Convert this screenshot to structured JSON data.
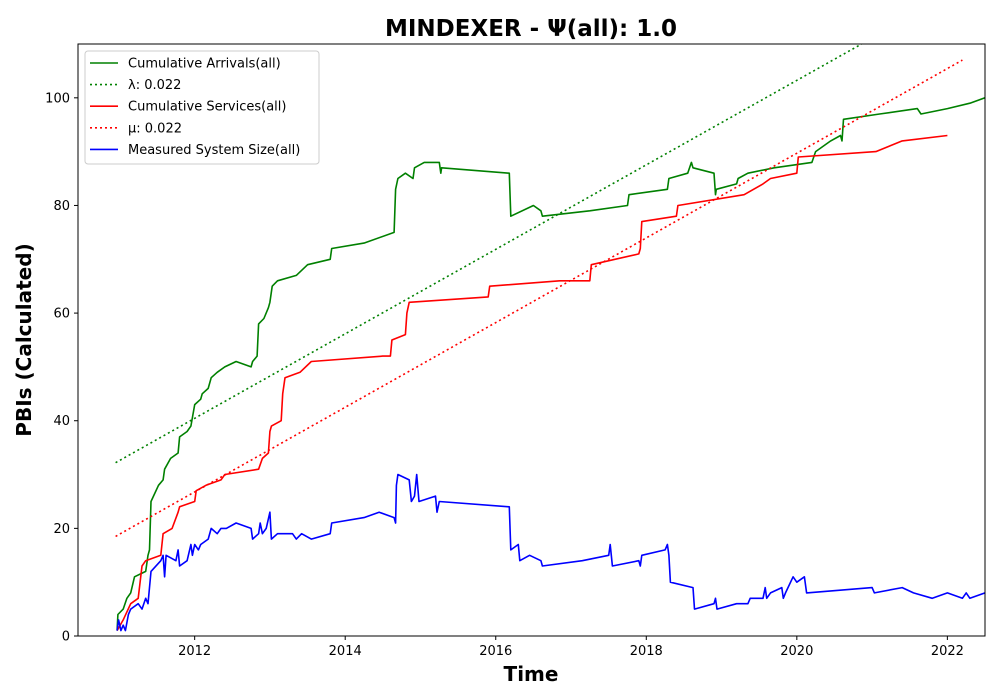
{
  "chart_data": {
    "type": "line",
    "title": "MINDEXER -  Ψ(all): 1.0",
    "xlabel": "Time",
    "ylabel": "PBIs (Calculated)",
    "xlim": [
      2010.45,
      2022.5
    ],
    "ylim": [
      0,
      110
    ],
    "xticks": [
      2012,
      2014,
      2016,
      2018,
      2020,
      2022
    ],
    "yticks": [
      0,
      20,
      40,
      60,
      80,
      100
    ],
    "grid": false,
    "legend_position": "upper-left",
    "series": [
      {
        "name": "Cumulative Arrivals(all)",
        "style": "solid",
        "color": "#008000",
        "points": [
          [
            2010.97,
            1
          ],
          [
            2010.98,
            4
          ],
          [
            2011.05,
            5
          ],
          [
            2011.1,
            7
          ],
          [
            2011.15,
            8
          ],
          [
            2011.2,
            11
          ],
          [
            2011.35,
            12
          ],
          [
            2011.38,
            15
          ],
          [
            2011.4,
            16
          ],
          [
            2011.42,
            25
          ],
          [
            2011.52,
            28
          ],
          [
            2011.58,
            29
          ],
          [
            2011.6,
            31
          ],
          [
            2011.68,
            33
          ],
          [
            2011.78,
            34
          ],
          [
            2011.8,
            37
          ],
          [
            2011.9,
            38
          ],
          [
            2011.95,
            39
          ],
          [
            2012.0,
            43
          ],
          [
            2012.08,
            44
          ],
          [
            2012.1,
            45
          ],
          [
            2012.18,
            46
          ],
          [
            2012.22,
            48
          ],
          [
            2012.3,
            49
          ],
          [
            2012.4,
            50
          ],
          [
            2012.55,
            51
          ],
          [
            2012.75,
            50
          ],
          [
            2012.77,
            51
          ],
          [
            2012.83,
            52
          ],
          [
            2012.85,
            58
          ],
          [
            2012.92,
            59
          ],
          [
            2012.98,
            61
          ],
          [
            2013.0,
            62
          ],
          [
            2013.03,
            65
          ],
          [
            2013.1,
            66
          ],
          [
            2013.35,
            67
          ],
          [
            2013.5,
            69
          ],
          [
            2013.8,
            70
          ],
          [
            2013.82,
            72
          ],
          [
            2014.25,
            73
          ],
          [
            2014.65,
            75
          ],
          [
            2014.67,
            83
          ],
          [
            2014.7,
            85
          ],
          [
            2014.8,
            86
          ],
          [
            2014.9,
            85
          ],
          [
            2014.92,
            87
          ],
          [
            2015.05,
            88
          ],
          [
            2015.25,
            88
          ],
          [
            2015.27,
            86
          ],
          [
            2015.28,
            87
          ],
          [
            2016.18,
            86
          ],
          [
            2016.2,
            78
          ],
          [
            2016.5,
            80
          ],
          [
            2016.6,
            79
          ],
          [
            2016.62,
            78
          ],
          [
            2017.25,
            79
          ],
          [
            2017.75,
            80
          ],
          [
            2017.77,
            82
          ],
          [
            2018.28,
            83
          ],
          [
            2018.3,
            85
          ],
          [
            2018.55,
            86
          ],
          [
            2018.6,
            88
          ],
          [
            2018.62,
            87
          ],
          [
            2018.9,
            86
          ],
          [
            2018.92,
            82
          ],
          [
            2018.93,
            83
          ],
          [
            2019.2,
            84
          ],
          [
            2019.22,
            85
          ],
          [
            2019.35,
            86
          ],
          [
            2019.7,
            87
          ],
          [
            2020.2,
            88
          ],
          [
            2020.25,
            90
          ],
          [
            2020.45,
            92
          ],
          [
            2020.58,
            93
          ],
          [
            2020.6,
            92
          ],
          [
            2020.62,
            96
          ],
          [
            2021.1,
            97
          ],
          [
            2021.6,
            98
          ],
          [
            2021.65,
            97
          ],
          [
            2022.0,
            98
          ],
          [
            2022.3,
            99
          ],
          [
            2022.5,
            100
          ]
        ]
      },
      {
        "name": "λ: 0.022",
        "style": "dotted",
        "color": "#008000",
        "points": [
          [
            2010.95,
            32.2
          ],
          [
            2020.86,
            110
          ]
        ]
      },
      {
        "name": "Cumulative Services(all)",
        "style": "solid",
        "color": "#ff0000",
        "points": [
          [
            2010.97,
            1
          ],
          [
            2011.05,
            3
          ],
          [
            2011.15,
            6
          ],
          [
            2011.25,
            7
          ],
          [
            2011.3,
            13
          ],
          [
            2011.35,
            14
          ],
          [
            2011.55,
            15
          ],
          [
            2011.58,
            19
          ],
          [
            2011.7,
            20
          ],
          [
            2011.78,
            23
          ],
          [
            2011.8,
            24
          ],
          [
            2012.0,
            25
          ],
          [
            2012.02,
            27
          ],
          [
            2012.15,
            28
          ],
          [
            2012.35,
            29
          ],
          [
            2012.4,
            30
          ],
          [
            2012.85,
            31
          ],
          [
            2012.9,
            33
          ],
          [
            2012.98,
            34
          ],
          [
            2013.0,
            38
          ],
          [
            2013.02,
            39
          ],
          [
            2013.15,
            40
          ],
          [
            2013.17,
            45
          ],
          [
            2013.2,
            48
          ],
          [
            2013.4,
            49
          ],
          [
            2013.55,
            51
          ],
          [
            2014.5,
            52
          ],
          [
            2014.6,
            52
          ],
          [
            2014.62,
            55
          ],
          [
            2014.8,
            56
          ],
          [
            2014.82,
            60
          ],
          [
            2014.85,
            62
          ],
          [
            2015.9,
            63
          ],
          [
            2015.92,
            65
          ],
          [
            2016.85,
            66
          ],
          [
            2017.25,
            66
          ],
          [
            2017.27,
            69
          ],
          [
            2017.9,
            71
          ],
          [
            2017.92,
            72
          ],
          [
            2017.94,
            77
          ],
          [
            2018.4,
            78
          ],
          [
            2018.42,
            80
          ],
          [
            2019.3,
            82
          ],
          [
            2019.55,
            84
          ],
          [
            2019.65,
            85
          ],
          [
            2020.0,
            86
          ],
          [
            2020.02,
            89
          ],
          [
            2021.05,
            90
          ],
          [
            2021.4,
            92
          ],
          [
            2022.0,
            93
          ]
        ]
      },
      {
        "name": "μ: 0.022",
        "style": "dotted",
        "color": "#ff0000",
        "points": [
          [
            2010.95,
            18.5
          ],
          [
            2022.2,
            107
          ]
        ]
      },
      {
        "name": "Measured System Size(all)",
        "style": "solid",
        "color": "#0000ff",
        "points": [
          [
            2010.97,
            1
          ],
          [
            2010.99,
            3
          ],
          [
            2011.02,
            1
          ],
          [
            2011.05,
            2
          ],
          [
            2011.08,
            1
          ],
          [
            2011.12,
            4
          ],
          [
            2011.15,
            5
          ],
          [
            2011.25,
            6
          ],
          [
            2011.3,
            5
          ],
          [
            2011.35,
            7
          ],
          [
            2011.38,
            6
          ],
          [
            2011.42,
            12
          ],
          [
            2011.55,
            14
          ],
          [
            2011.58,
            15
          ],
          [
            2011.6,
            11
          ],
          [
            2011.62,
            15
          ],
          [
            2011.75,
            14
          ],
          [
            2011.78,
            16
          ],
          [
            2011.8,
            13
          ],
          [
            2011.9,
            14
          ],
          [
            2011.95,
            17
          ],
          [
            2011.97,
            15
          ],
          [
            2012.0,
            17
          ],
          [
            2012.05,
            16
          ],
          [
            2012.08,
            17
          ],
          [
            2012.18,
            18
          ],
          [
            2012.22,
            20
          ],
          [
            2012.3,
            19
          ],
          [
            2012.35,
            20
          ],
          [
            2012.42,
            20
          ],
          [
            2012.55,
            21
          ],
          [
            2012.75,
            20
          ],
          [
            2012.77,
            18
          ],
          [
            2012.85,
            19
          ],
          [
            2012.87,
            21
          ],
          [
            2012.9,
            19
          ],
          [
            2012.95,
            20
          ],
          [
            2013.0,
            23
          ],
          [
            2013.02,
            18
          ],
          [
            2013.1,
            19
          ],
          [
            2013.3,
            19
          ],
          [
            2013.35,
            18
          ],
          [
            2013.42,
            19
          ],
          [
            2013.55,
            18
          ],
          [
            2013.8,
            19
          ],
          [
            2013.82,
            21
          ],
          [
            2014.25,
            22
          ],
          [
            2014.45,
            23
          ],
          [
            2014.65,
            22
          ],
          [
            2014.67,
            21
          ],
          [
            2014.68,
            28
          ],
          [
            2014.7,
            30
          ],
          [
            2014.85,
            29
          ],
          [
            2014.88,
            25
          ],
          [
            2014.92,
            26
          ],
          [
            2014.95,
            30
          ],
          [
            2014.98,
            25
          ],
          [
            2015.2,
            26
          ],
          [
            2015.22,
            23
          ],
          [
            2015.25,
            25
          ],
          [
            2016.18,
            24
          ],
          [
            2016.2,
            16
          ],
          [
            2016.3,
            17
          ],
          [
            2016.32,
            14
          ],
          [
            2016.45,
            15
          ],
          [
            2016.6,
            14
          ],
          [
            2016.62,
            13
          ],
          [
            2017.15,
            14
          ],
          [
            2017.5,
            15
          ],
          [
            2017.52,
            17
          ],
          [
            2017.55,
            13
          ],
          [
            2017.9,
            14
          ],
          [
            2017.92,
            13
          ],
          [
            2017.94,
            15
          ],
          [
            2018.25,
            16
          ],
          [
            2018.28,
            17
          ],
          [
            2018.3,
            15
          ],
          [
            2018.32,
            10
          ],
          [
            2018.62,
            9
          ],
          [
            2018.64,
            5
          ],
          [
            2018.9,
            6
          ],
          [
            2018.92,
            7
          ],
          [
            2018.94,
            5
          ],
          [
            2019.2,
            6
          ],
          [
            2019.35,
            6
          ],
          [
            2019.38,
            7
          ],
          [
            2019.55,
            7
          ],
          [
            2019.58,
            9
          ],
          [
            2019.6,
            7
          ],
          [
            2019.65,
            8
          ],
          [
            2019.8,
            9
          ],
          [
            2019.82,
            7
          ],
          [
            2019.85,
            8
          ],
          [
            2019.95,
            11
          ],
          [
            2020.0,
            10
          ],
          [
            2020.1,
            11
          ],
          [
            2020.13,
            8
          ],
          [
            2021.0,
            9
          ],
          [
            2021.03,
            8
          ],
          [
            2021.4,
            9
          ],
          [
            2021.55,
            8
          ],
          [
            2021.8,
            7
          ],
          [
            2022.0,
            8
          ],
          [
            2022.2,
            7
          ],
          [
            2022.25,
            8
          ],
          [
            2022.3,
            7
          ],
          [
            2022.5,
            8
          ],
          [
            2022.7,
            7
          ]
        ]
      }
    ]
  }
}
